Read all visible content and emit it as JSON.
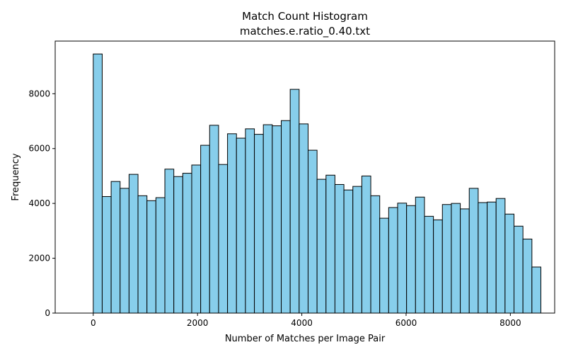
{
  "chart_data": {
    "type": "bar",
    "title": "Match Count Histogram",
    "subtitle": "matches.e.ratio_0.40.txt",
    "xlabel": "Number of Matches per Image Pair",
    "ylabel": "Frequency",
    "bar_color": "#87ceeb",
    "edge_color": "#000000",
    "bin_width": 171.7,
    "x_start": 0,
    "xlim": [
      -730,
      8850
    ],
    "ylim": [
      0,
      9920
    ],
    "xticks": [
      0,
      2000,
      4000,
      6000,
      8000
    ],
    "yticks": [
      0,
      2000,
      4000,
      6000,
      8000
    ],
    "grid": false,
    "values": [
      9450,
      4250,
      4800,
      4550,
      5060,
      4280,
      4100,
      4210,
      5250,
      4980,
      5100,
      5400,
      6120,
      6850,
      5420,
      6540,
      6380,
      6720,
      6520,
      6870,
      6830,
      7020,
      8160,
      6900,
      5940,
      4880,
      5030,
      4690,
      4490,
      4620,
      5000,
      4280,
      3460,
      3850,
      4010,
      3920,
      4230,
      3530,
      3400,
      3960,
      4000,
      3800,
      4550,
      4030,
      4050,
      4180,
      3610,
      3170,
      2700,
      1680
    ]
  }
}
